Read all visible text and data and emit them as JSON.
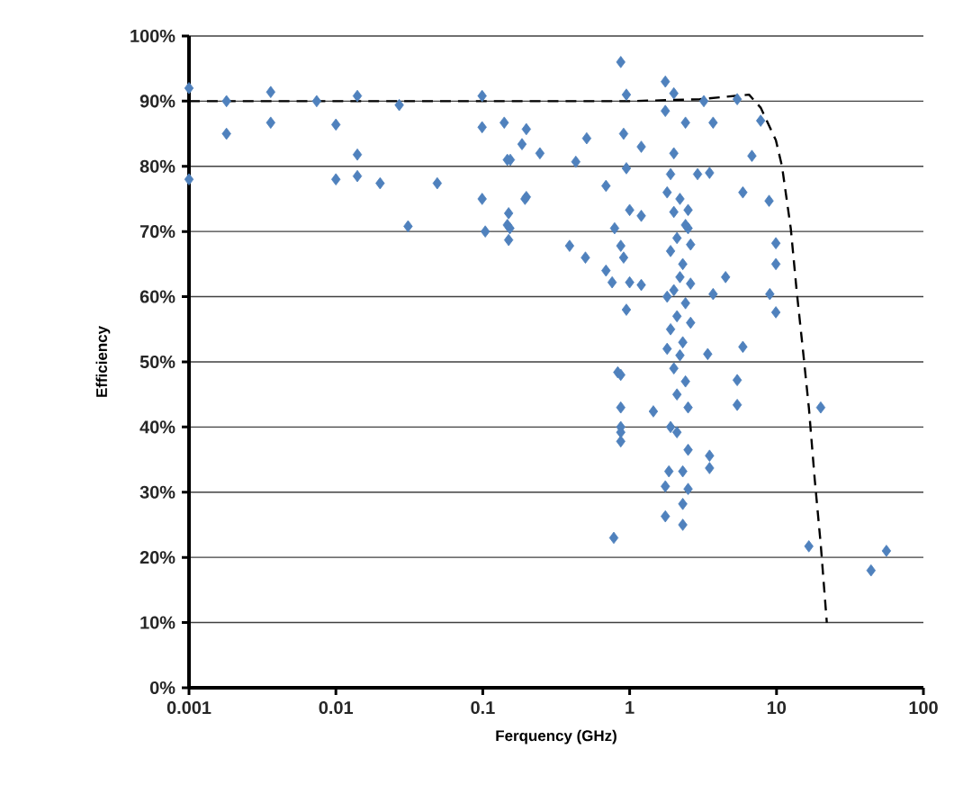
{
  "chart_data": {
    "type": "scatter",
    "xlabel": "Ferquency (GHz)",
    "ylabel": "Efficiency",
    "log": "x",
    "grid": "y",
    "xlim": [
      0.001,
      100
    ],
    "xticks": [
      0.001,
      0.01,
      0.1,
      1,
      10,
      100
    ],
    "ylim": [
      0,
      100
    ],
    "yticks": [
      {
        "value": 0,
        "label": "0%"
      },
      {
        "value": 10,
        "label": "10%"
      },
      {
        "value": 20,
        "label": "20%"
      },
      {
        "value": 30,
        "label": "30%"
      },
      {
        "value": 40,
        "label": "40%"
      },
      {
        "value": 50,
        "label": "50%"
      },
      {
        "value": 60,
        "label": "60%"
      },
      {
        "value": 70,
        "label": "70%"
      },
      {
        "value": 80,
        "label": "80%"
      },
      {
        "value": 90,
        "label": "90%"
      },
      {
        "value": 100,
        "label": "100%"
      }
    ],
    "series": [
      {
        "color": "#4f81bd",
        "marker": "diamond",
        "x": [
          0.001,
          0.001,
          0.0018,
          0.0018,
          0.0036,
          0.0036,
          0.0074,
          0.01,
          0.01,
          0.014,
          0.014,
          0.014,
          0.02,
          0.027,
          0.031,
          0.049,
          0.099,
          0.099,
          0.099,
          0.104,
          0.14,
          0.147,
          0.147,
          0.15,
          0.15,
          0.198,
          0.198,
          0.185,
          0.245,
          0.154,
          0.194,
          0.153,
          0.43,
          0.51,
          0.69,
          0.87,
          0.95,
          0.91,
          1.2,
          0.95,
          0.39,
          0.5,
          0.69,
          0.79,
          1.0,
          1.2,
          0.87,
          0.91,
          0.76,
          1.0,
          1.2,
          0.95,
          0.83,
          0.87,
          0.87,
          0.87,
          1.75,
          2.0,
          1.75,
          2.4,
          3.2,
          3.7,
          5.4,
          7.8,
          2.0,
          1.9,
          2.9,
          3.5,
          6.8,
          5.9,
          8.9,
          2.5,
          2.5,
          4.5,
          3.7,
          9.9,
          9.9,
          9.0,
          9.9,
          3.4,
          5.9,
          5.4,
          5.4,
          20,
          1.45,
          2.5,
          3.5,
          0.87,
          0.87,
          2.1,
          3.5,
          1.85,
          2.3,
          1.75,
          2.5,
          2.3,
          1.75,
          2.3,
          0.78,
          16.6,
          44,
          56,
          2.2,
          2.0,
          2.4,
          2.1,
          1.9,
          2.3,
          2.2,
          2.0,
          2.4,
          2.1,
          1.9,
          2.3,
          2.2,
          2.0,
          2.4,
          2.1,
          1.8,
          2.6,
          2.6,
          2.6,
          1.8,
          1.8,
          2.5,
          1.9
        ],
        "values": [
          92,
          78,
          90,
          85,
          91.4,
          86.7,
          90,
          86.4,
          78,
          90.8,
          81.8,
          78.5,
          77.4,
          89.4,
          70.8,
          77.4,
          90.8,
          86,
          75,
          70,
          86.7,
          81,
          71,
          68.7,
          72.8,
          75.3,
          85.7,
          83.4,
          82,
          81,
          75,
          70.5,
          80.7,
          84.3,
          77,
          96,
          91,
          85,
          83,
          79.7,
          67.8,
          66,
          64,
          70.5,
          73.3,
          72.4,
          67.8,
          66,
          62.2,
          62.2,
          61.8,
          58,
          48.4,
          43,
          40,
          37.8,
          93,
          91.2,
          88.5,
          86.7,
          90,
          86.7,
          90.3,
          87,
          82,
          78.8,
          78.8,
          79,
          81.6,
          76,
          74.7,
          73.3,
          70.5,
          63,
          60.4,
          68.2,
          65,
          60.4,
          57.6,
          51.2,
          52.3,
          47.2,
          43.4,
          43,
          42.4,
          36.5,
          35.6,
          48,
          39.2,
          39.2,
          33.7,
          33.2,
          33.2,
          30.9,
          30.5,
          28.2,
          26.3,
          25,
          23,
          21.7,
          18,
          21,
          75,
          73,
          71,
          69,
          67,
          65,
          63,
          61,
          59,
          57,
          55,
          53,
          51,
          49,
          47,
          45,
          76,
          68,
          62,
          56,
          60,
          52,
          43,
          40
        ]
      },
      {
        "type": "line",
        "color": "#000000",
        "marker": "none",
        "line_style": "dashed",
        "x": [
          0.001,
          1,
          3,
          6.5,
          7.8,
          9.9,
          10.9,
          12.5,
          13.7,
          15.1,
          16.6,
          18.2,
          20,
          22
        ],
        "values": [
          90,
          90,
          90.3,
          91,
          89,
          84,
          80,
          70.5,
          61,
          52,
          43,
          32,
          22,
          10
        ]
      }
    ]
  }
}
